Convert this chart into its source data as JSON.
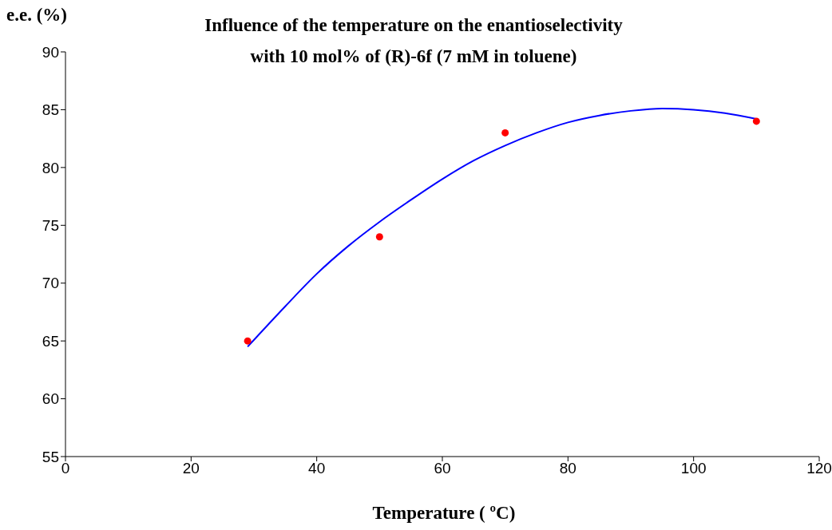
{
  "chart_data": {
    "type": "scatter",
    "title": "Influence of the temperature on the enantioselectivity",
    "subtitle": "with 10 mol% of (R)-6f (7 mM in toluene)",
    "xlabel": "Temperature ( ºC)",
    "ylabel": "e.e. (%)",
    "xlim": [
      0,
      120
    ],
    "xticks": [
      0,
      20,
      40,
      60,
      80,
      100,
      120
    ],
    "ylim": [
      55,
      90
    ],
    "yticks": [
      55,
      60,
      65,
      70,
      75,
      80,
      85,
      90
    ],
    "grid": false,
    "series": [
      {
        "type": "line",
        "color": "#0000ff",
        "marker": "none",
        "x": [
          29,
          35,
          40,
          45,
          50,
          55,
          60,
          65,
          70,
          75,
          80,
          85,
          90,
          95,
          100,
          105,
          110
        ],
        "values": [
          64.5,
          68,
          70.8,
          73.2,
          75.3,
          77.2,
          79,
          80.6,
          81.9,
          83,
          83.9,
          84.5,
          84.9,
          85.1,
          85,
          84.7,
          84.2
        ]
      },
      {
        "color": "#ff0000",
        "marker": "circle",
        "x": [
          29,
          50,
          70,
          110
        ],
        "values": [
          65,
          74,
          83,
          84
        ]
      }
    ]
  }
}
